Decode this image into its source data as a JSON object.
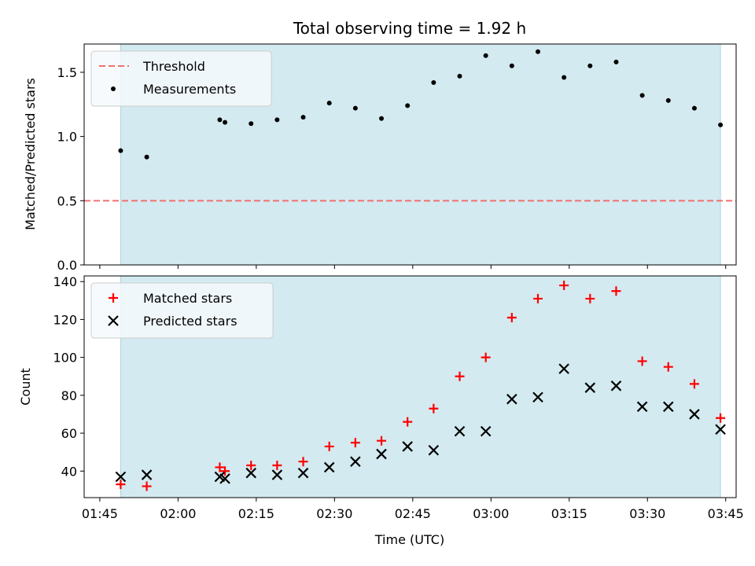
{
  "chart_data": [
    {
      "type": "scatter",
      "title": "Total observing time = 1.92 h",
      "xlabel": "",
      "ylabel": "Matched/Predicted stars",
      "xlim": [
        "01:42",
        "03:47"
      ],
      "ylim": [
        0,
        1.72
      ],
      "yticks": [
        "0.0",
        "0.5",
        "1.0",
        "1.5"
      ],
      "shaded_span": [
        "01:49",
        "03:44"
      ],
      "legend_position": "upper-left",
      "series": [
        {
          "name": "Threshold",
          "kind": "hline",
          "style": "dashed",
          "color": "#f07070",
          "y": 0.5
        },
        {
          "name": "Measurements",
          "kind": "points",
          "color": "#000000",
          "x": [
            "01:49",
            "01:54",
            "02:08",
            "02:09",
            "02:14",
            "02:19",
            "02:24",
            "02:29",
            "02:34",
            "02:39",
            "02:44",
            "02:49",
            "02:54",
            "02:59",
            "03:04",
            "03:09",
            "03:14",
            "03:19",
            "03:24",
            "03:29",
            "03:34",
            "03:39",
            "03:44"
          ],
          "y": [
            0.89,
            0.84,
            1.13,
            1.11,
            1.1,
            1.13,
            1.15,
            1.26,
            1.22,
            1.14,
            1.24,
            1.42,
            1.47,
            1.63,
            1.55,
            1.66,
            1.46,
            1.55,
            1.58,
            1.32,
            1.28,
            1.22,
            1.09
          ]
        }
      ]
    },
    {
      "type": "scatter",
      "title": "",
      "xlabel": "Time (UTC)",
      "ylabel": "Count",
      "xlim": [
        "01:42",
        "03:47"
      ],
      "ylim": [
        26,
        143
      ],
      "xticks": [
        "01:45",
        "02:00",
        "02:15",
        "02:30",
        "02:45",
        "03:00",
        "03:15",
        "03:30",
        "03:45"
      ],
      "yticks": [
        40,
        60,
        80,
        100,
        120,
        140
      ],
      "shaded_span": [
        "01:49",
        "03:44"
      ],
      "legend_position": "upper-left",
      "series": [
        {
          "name": "Matched stars",
          "marker": "plus",
          "color": "#ff0000",
          "x": [
            "01:49",
            "01:54",
            "02:08",
            "02:09",
            "02:14",
            "02:19",
            "02:24",
            "02:29",
            "02:34",
            "02:39",
            "02:44",
            "02:49",
            "02:54",
            "02:59",
            "03:04",
            "03:09",
            "03:14",
            "03:19",
            "03:24",
            "03:29",
            "03:34",
            "03:39",
            "03:44"
          ],
          "y": [
            33,
            32,
            42,
            40,
            43,
            43,
            45,
            53,
            55,
            56,
            66,
            73,
            90,
            100,
            121,
            131,
            138,
            131,
            135,
            98,
            95,
            86,
            68
          ]
        },
        {
          "name": "Predicted stars",
          "marker": "x",
          "color": "#000000",
          "x": [
            "01:49",
            "01:54",
            "02:08",
            "02:09",
            "02:14",
            "02:19",
            "02:24",
            "02:29",
            "02:34",
            "02:39",
            "02:44",
            "02:49",
            "02:54",
            "02:59",
            "03:04",
            "03:09",
            "03:14",
            "03:19",
            "03:24",
            "03:29",
            "03:34",
            "03:39",
            "03:44"
          ],
          "y": [
            37,
            38,
            37,
            36,
            39,
            38,
            39,
            42,
            45,
            49,
            53,
            51,
            61,
            61,
            78,
            79,
            94,
            84,
            85,
            74,
            74,
            70,
            62
          ]
        }
      ]
    }
  ],
  "colors": {
    "span_fill": "#d3eaf0",
    "span_edge": "#a8d5e0",
    "legend_bg": "#f5f9fc"
  }
}
